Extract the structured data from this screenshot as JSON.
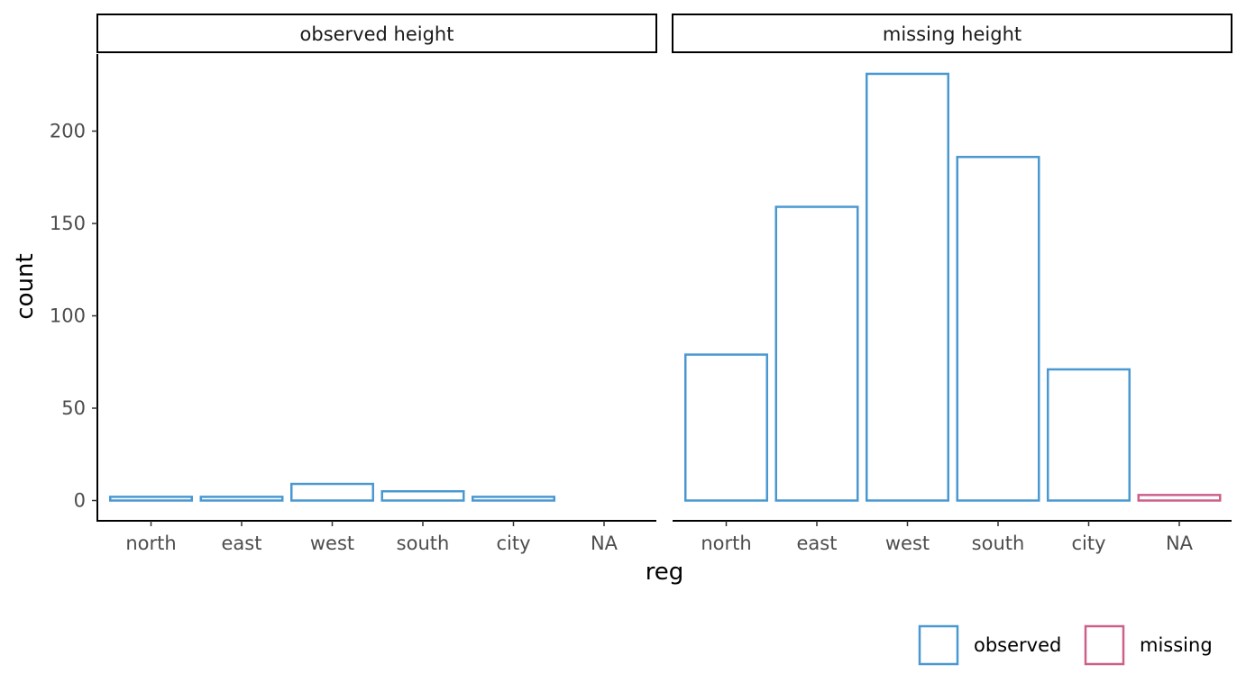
{
  "chart_data": {
    "type": "bar",
    "xlabel": "reg",
    "ylabel": "count",
    "categories": [
      "north",
      "east",
      "west",
      "south",
      "city",
      "NA"
    ],
    "ylim": [
      0,
      240
    ],
    "yticks": [
      0,
      50,
      100,
      150,
      200
    ],
    "grid": false,
    "legend_position": "bottom-right",
    "legend": [
      {
        "label": "observed",
        "color": "#4a98d2"
      },
      {
        "label": "missing",
        "color": "#cc6089"
      }
    ],
    "panels": [
      {
        "strip_label": "observed height",
        "bars": [
          {
            "category": "north",
            "value": 2,
            "group": "observed"
          },
          {
            "category": "east",
            "value": 2,
            "group": "observed"
          },
          {
            "category": "west",
            "value": 9,
            "group": "observed"
          },
          {
            "category": "south",
            "value": 5,
            "group": "observed"
          },
          {
            "category": "city",
            "value": 2,
            "group": "observed"
          }
        ]
      },
      {
        "strip_label": "missing height",
        "bars": [
          {
            "category": "north",
            "value": 79,
            "group": "observed"
          },
          {
            "category": "east",
            "value": 159,
            "group": "observed"
          },
          {
            "category": "west",
            "value": 231,
            "group": "observed"
          },
          {
            "category": "south",
            "value": 186,
            "group": "observed"
          },
          {
            "category": "city",
            "value": 71,
            "group": "observed"
          },
          {
            "category": "NA",
            "value": 3,
            "group": "missing"
          }
        ]
      }
    ]
  }
}
